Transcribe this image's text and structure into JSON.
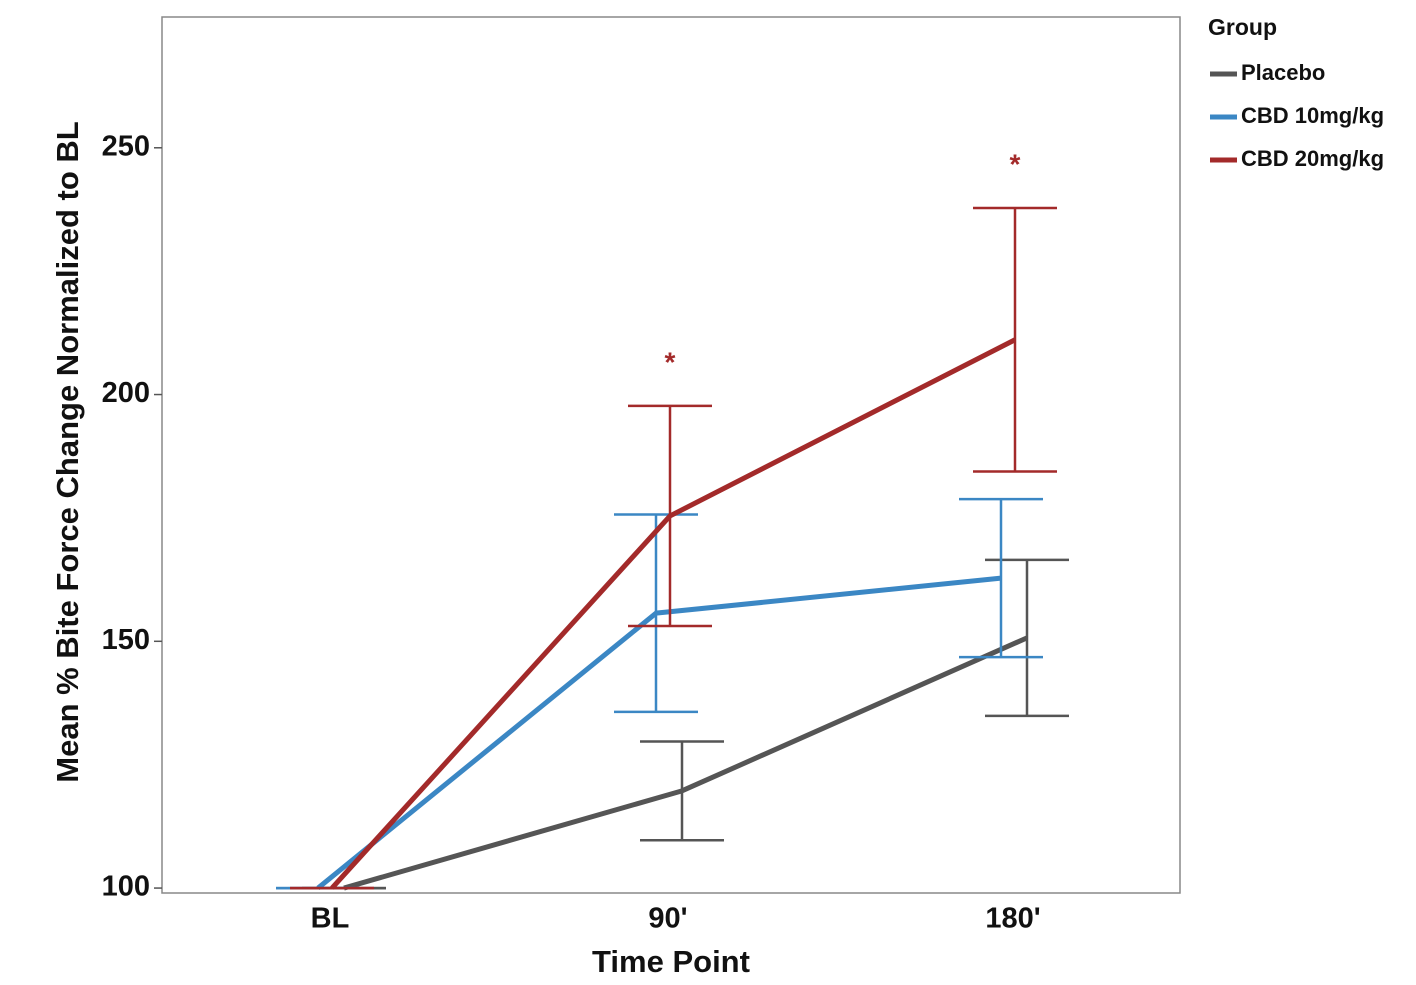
{
  "chart_data": {
    "type": "line",
    "x_label": "Time Point",
    "y_label": "Mean % Bite Force Change Normalized to BL",
    "categories": [
      "BL",
      "90'",
      "180'"
    ],
    "legend_title": "Group",
    "legend": "right",
    "ylim": [
      99,
      276.5
    ],
    "yticks": [
      100,
      150,
      200,
      250
    ],
    "series": [
      {
        "name": "Placebo",
        "color": "#555555",
        "values": [
          100,
          119.7,
          150.7
        ],
        "errors": [
          0,
          10,
          15.8
        ]
      },
      {
        "name": "CBD 10mg/kg",
        "color": "#3b87c4",
        "values": [
          100,
          155.7,
          162.8
        ],
        "errors": [
          0,
          20,
          16
        ]
      },
      {
        "name": "CBD 20mg/kg",
        "color": "#a32a2a",
        "values": [
          100,
          175.4,
          211.1
        ],
        "errors": [
          0,
          22.3,
          26.7
        ],
        "annotations": [
          null,
          "*",
          "*"
        ]
      }
    ]
  }
}
